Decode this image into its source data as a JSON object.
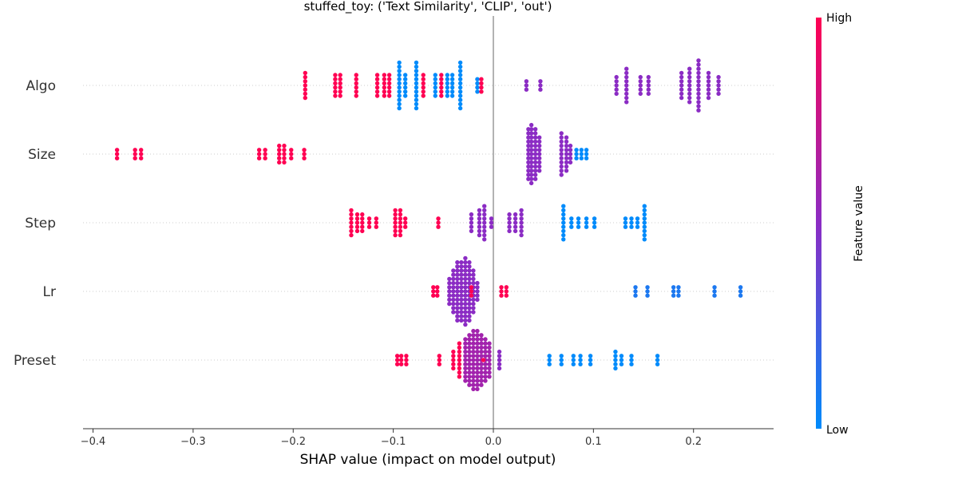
{
  "chart_data": {
    "type": "scatter",
    "title": "stuffed_toy: ('Text Similarity', 'CLIP', 'out')",
    "xlabel": "SHAP value (impact on model output)",
    "xlim": [
      -0.41,
      0.28
    ],
    "x_ticks": [
      -0.4,
      -0.3,
      -0.2,
      -0.1,
      0.0,
      0.1,
      0.2
    ],
    "x_tick_labels": [
      "−0.4",
      "−0.3",
      "−0.2",
      "−0.1",
      "0.0",
      "0.1",
      "0.2"
    ],
    "features": [
      "Algo",
      "Size",
      "Step",
      "Lr",
      "Preset"
    ],
    "colorbar": {
      "label": "Feature value",
      "high": "High",
      "low": "Low",
      "high_color": "#ff0052",
      "mid_color": "#8b2cc4",
      "low_color": "#008bfb"
    },
    "series": [
      {
        "feature": "Algo",
        "clusters": [
          {
            "x": -0.188,
            "n": 7,
            "value": 1.0
          },
          {
            "x": -0.158,
            "n": 6,
            "value": 1.0
          },
          {
            "x": -0.153,
            "n": 6,
            "value": 1.0
          },
          {
            "x": -0.137,
            "n": 6,
            "value": 1.0
          },
          {
            "x": -0.116,
            "n": 6,
            "value": 1.0
          },
          {
            "x": -0.109,
            "n": 6,
            "value": 1.0
          },
          {
            "x": -0.104,
            "n": 6,
            "value": 1.0
          },
          {
            "x": -0.094,
            "n": 12,
            "value": 0.0
          },
          {
            "x": -0.088,
            "n": 6,
            "value": 0.0
          },
          {
            "x": -0.077,
            "n": 12,
            "value": 0.0
          },
          {
            "x": -0.07,
            "n": 6,
            "value": 1.0
          },
          {
            "x": -0.058,
            "n": 6,
            "value": 0.0
          },
          {
            "x": -0.052,
            "n": 6,
            "value": 1.0
          },
          {
            "x": -0.046,
            "n": 6,
            "value": 0.0
          },
          {
            "x": -0.041,
            "n": 6,
            "value": 0.0
          },
          {
            "x": -0.033,
            "n": 12,
            "value": 0.0
          },
          {
            "x": -0.016,
            "n": 4,
            "value": 0.0
          },
          {
            "x": -0.012,
            "n": 4,
            "value": 1.0
          },
          {
            "x": 0.033,
            "n": 3,
            "value": 0.5
          },
          {
            "x": 0.047,
            "n": 3,
            "value": 0.5
          },
          {
            "x": 0.123,
            "n": 5,
            "value": 0.5
          },
          {
            "x": 0.133,
            "n": 9,
            "value": 0.5
          },
          {
            "x": 0.147,
            "n": 5,
            "value": 0.5
          },
          {
            "x": 0.155,
            "n": 5,
            "value": 0.5
          },
          {
            "x": 0.188,
            "n": 7,
            "value": 0.5
          },
          {
            "x": 0.196,
            "n": 9,
            "value": 0.5
          },
          {
            "x": 0.205,
            "n": 13,
            "value": 0.5
          },
          {
            "x": 0.215,
            "n": 7,
            "value": 0.5
          },
          {
            "x": 0.225,
            "n": 5,
            "value": 0.5
          }
        ]
      },
      {
        "feature": "Size",
        "clusters": [
          {
            "x": -0.376,
            "n": 3,
            "value": 1.0
          },
          {
            "x": -0.358,
            "n": 3,
            "value": 1.0
          },
          {
            "x": -0.352,
            "n": 3,
            "value": 1.0
          },
          {
            "x": -0.234,
            "n": 3,
            "value": 1.0
          },
          {
            "x": -0.228,
            "n": 3,
            "value": 1.0
          },
          {
            "x": -0.214,
            "n": 5,
            "value": 1.0
          },
          {
            "x": -0.209,
            "n": 5,
            "value": 1.0
          },
          {
            "x": -0.202,
            "n": 3,
            "value": 1.0
          },
          {
            "x": -0.189,
            "n": 3,
            "value": 1.0
          },
          {
            "x": 0.035,
            "n": 13,
            "value": 0.5
          },
          {
            "x": 0.038,
            "n": 15,
            "value": 0.5
          },
          {
            "x": 0.042,
            "n": 13,
            "value": 0.5
          },
          {
            "x": 0.046,
            "n": 9,
            "value": 0.5
          },
          {
            "x": 0.068,
            "n": 11,
            "value": 0.5
          },
          {
            "x": 0.073,
            "n": 9,
            "value": 0.5
          },
          {
            "x": 0.077,
            "n": 5,
            "value": 0.5
          },
          {
            "x": 0.083,
            "n": 3,
            "value": 0.0
          },
          {
            "x": 0.088,
            "n": 3,
            "value": 0.0
          },
          {
            "x": 0.093,
            "n": 3,
            "value": 0.0
          }
        ]
      },
      {
        "feature": "Step",
        "clusters": [
          {
            "x": -0.142,
            "n": 7,
            "value": 1.0
          },
          {
            "x": -0.136,
            "n": 5,
            "value": 1.0
          },
          {
            "x": -0.131,
            "n": 5,
            "value": 1.0
          },
          {
            "x": -0.124,
            "n": 3,
            "value": 1.0
          },
          {
            "x": -0.117,
            "n": 3,
            "value": 1.0
          },
          {
            "x": -0.098,
            "n": 7,
            "value": 1.0
          },
          {
            "x": -0.093,
            "n": 7,
            "value": 1.0
          },
          {
            "x": -0.088,
            "n": 3,
            "value": 1.0
          },
          {
            "x": -0.055,
            "n": 3,
            "value": 1.0
          },
          {
            "x": -0.022,
            "n": 5,
            "value": 0.5
          },
          {
            "x": -0.014,
            "n": 7,
            "value": 0.5
          },
          {
            "x": -0.009,
            "n": 9,
            "value": 0.5
          },
          {
            "x": -0.002,
            "n": 3,
            "value": 0.5
          },
          {
            "x": 0.016,
            "n": 5,
            "value": 0.5
          },
          {
            "x": 0.022,
            "n": 5,
            "value": 0.5
          },
          {
            "x": 0.028,
            "n": 7,
            "value": 0.5
          },
          {
            "x": 0.07,
            "n": 9,
            "value": 0.0
          },
          {
            "x": 0.078,
            "n": 3,
            "value": 0.0
          },
          {
            "x": 0.085,
            "n": 3,
            "value": 0.0
          },
          {
            "x": 0.093,
            "n": 3,
            "value": 0.0
          },
          {
            "x": 0.101,
            "n": 3,
            "value": 0.0
          },
          {
            "x": 0.132,
            "n": 3,
            "value": 0.0
          },
          {
            "x": 0.138,
            "n": 3,
            "value": 0.0
          },
          {
            "x": 0.144,
            "n": 3,
            "value": 0.0
          },
          {
            "x": 0.151,
            "n": 9,
            "value": 0.0
          }
        ]
      },
      {
        "feature": "Lr",
        "clusters": [
          {
            "x": -0.06,
            "n": 3,
            "value": 1.0
          },
          {
            "x": -0.056,
            "n": 3,
            "value": 1.0
          },
          {
            "x": -0.044,
            "n": 7,
            "value": 0.5
          },
          {
            "x": -0.04,
            "n": 11,
            "value": 0.5
          },
          {
            "x": -0.036,
            "n": 15,
            "value": 0.5
          },
          {
            "x": -0.032,
            "n": 15,
            "value": 0.5
          },
          {
            "x": -0.028,
            "n": 17,
            "value": 0.5
          },
          {
            "x": -0.024,
            "n": 15,
            "value": 0.5
          },
          {
            "x": -0.02,
            "n": 11,
            "value": 0.5
          },
          {
            "x": -0.016,
            "n": 5,
            "value": 0.5
          },
          {
            "x": -0.022,
            "n": 3,
            "value": 1.0
          },
          {
            "x": 0.008,
            "n": 3,
            "value": 1.0
          },
          {
            "x": 0.013,
            "n": 3,
            "value": 1.0
          },
          {
            "x": 0.142,
            "n": 3,
            "value": 0.1
          },
          {
            "x": 0.154,
            "n": 3,
            "value": 0.1
          },
          {
            "x": 0.18,
            "n": 3,
            "value": 0.1
          },
          {
            "x": 0.185,
            "n": 3,
            "value": 0.1
          },
          {
            "x": 0.221,
            "n": 3,
            "value": 0.1
          },
          {
            "x": 0.247,
            "n": 3,
            "value": 0.1
          }
        ]
      },
      {
        "feature": "Preset",
        "clusters": [
          {
            "x": -0.096,
            "n": 3,
            "value": 1.0
          },
          {
            "x": -0.092,
            "n": 3,
            "value": 1.0
          },
          {
            "x": -0.087,
            "n": 3,
            "value": 1.0
          },
          {
            "x": -0.054,
            "n": 3,
            "value": 1.0
          },
          {
            "x": -0.04,
            "n": 5,
            "value": 1.0
          },
          {
            "x": -0.034,
            "n": 9,
            "value": 1.0
          },
          {
            "x": -0.028,
            "n": 11,
            "value": 0.6
          },
          {
            "x": -0.024,
            "n": 13,
            "value": 0.6
          },
          {
            "x": -0.02,
            "n": 15,
            "value": 0.6
          },
          {
            "x": -0.016,
            "n": 15,
            "value": 0.6
          },
          {
            "x": -0.012,
            "n": 13,
            "value": 0.6
          },
          {
            "x": -0.008,
            "n": 11,
            "value": 0.6
          },
          {
            "x": -0.004,
            "n": 9,
            "value": 0.6
          },
          {
            "x": 0.006,
            "n": 5,
            "value": 0.5
          },
          {
            "x": -0.01,
            "n": 1,
            "value": 1.0
          },
          {
            "x": 0.056,
            "n": 3,
            "value": 0.0
          },
          {
            "x": 0.068,
            "n": 3,
            "value": 0.0
          },
          {
            "x": 0.08,
            "n": 3,
            "value": 0.0
          },
          {
            "x": 0.087,
            "n": 3,
            "value": 0.0
          },
          {
            "x": 0.097,
            "n": 3,
            "value": 0.0
          },
          {
            "x": 0.122,
            "n": 5,
            "value": 0.0
          },
          {
            "x": 0.128,
            "n": 3,
            "value": 0.0
          },
          {
            "x": 0.138,
            "n": 3,
            "value": 0.0
          },
          {
            "x": 0.164,
            "n": 3,
            "value": 0.0
          }
        ]
      }
    ]
  }
}
